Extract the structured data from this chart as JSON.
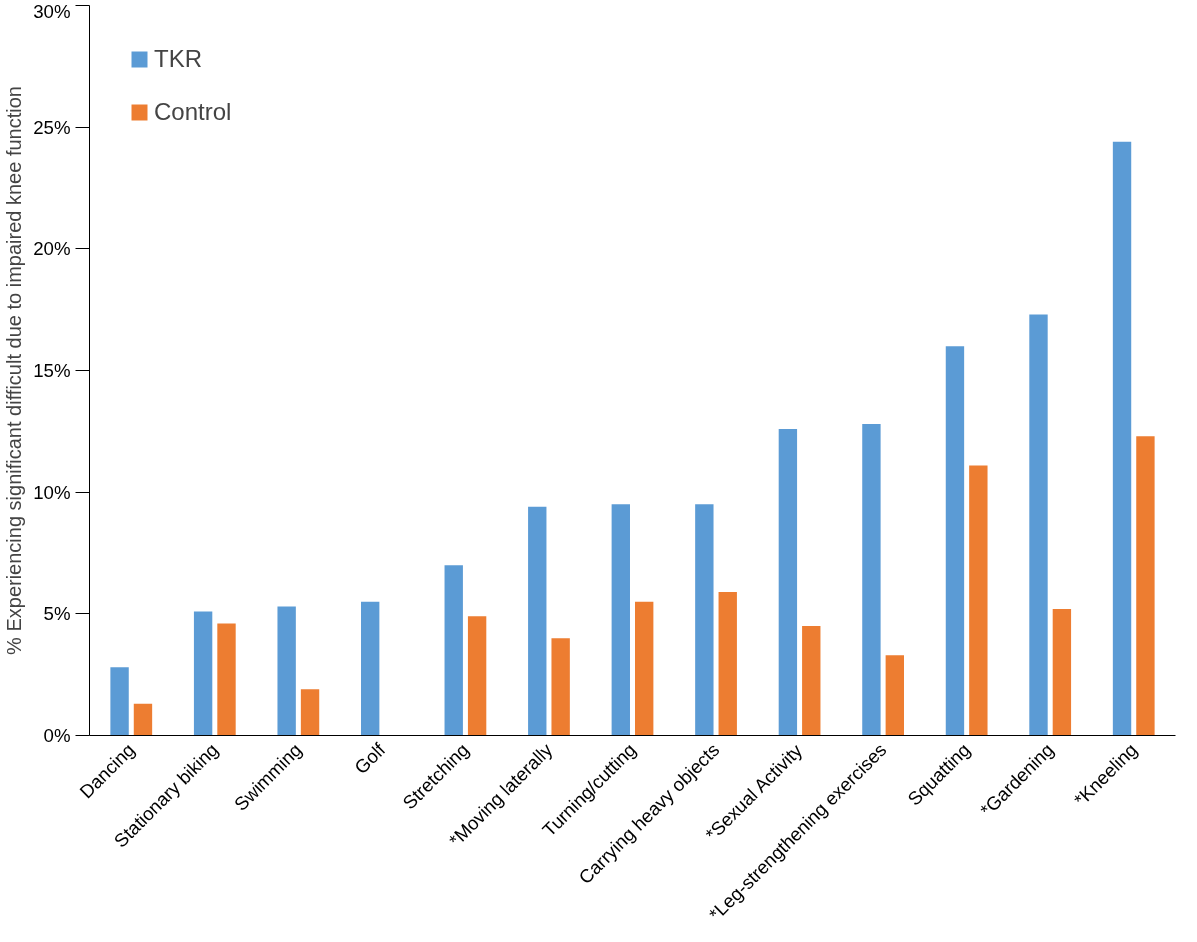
{
  "chart_data": {
    "type": "bar",
    "ylabel": "% Experiencing significant difficult due to impaired knee function",
    "categories": [
      "Dancing",
      "Stationary biking",
      "Swimming",
      "Golf",
      "Stretching",
      "*Moving laterally",
      "Turning/cutting",
      "Carrying heavy objects",
      "*Sexual Activity",
      "*Leg-strengthening exercises",
      "Squatting",
      "*Gardening",
      "*Kneeling"
    ],
    "series": [
      {
        "name": "TKR",
        "color": "#5b9bd5",
        "values": [
          2.8,
          5.1,
          5.3,
          5.5,
          7.0,
          9.4,
          9.5,
          9.5,
          12.6,
          12.8,
          16.0,
          17.3,
          24.4
        ]
      },
      {
        "name": "Control",
        "color": "#ed7d31",
        "values": [
          1.3,
          4.6,
          1.9,
          null,
          4.9,
          4.0,
          5.5,
          5.9,
          4.5,
          3.3,
          11.1,
          5.2,
          12.3
        ]
      }
    ],
    "ylim": [
      0,
      30
    ],
    "yticks": [
      {
        "value": 0,
        "label": "0%"
      },
      {
        "value": 5,
        "label": "5%"
      },
      {
        "value": 10,
        "label": "10%"
      },
      {
        "value": 15,
        "label": "15%"
      },
      {
        "value": 20,
        "label": "20%"
      },
      {
        "value": 25,
        "label": "25%"
      },
      {
        "value": 30,
        "label": "30%"
      }
    ],
    "grid": false,
    "legend": "top left"
  }
}
